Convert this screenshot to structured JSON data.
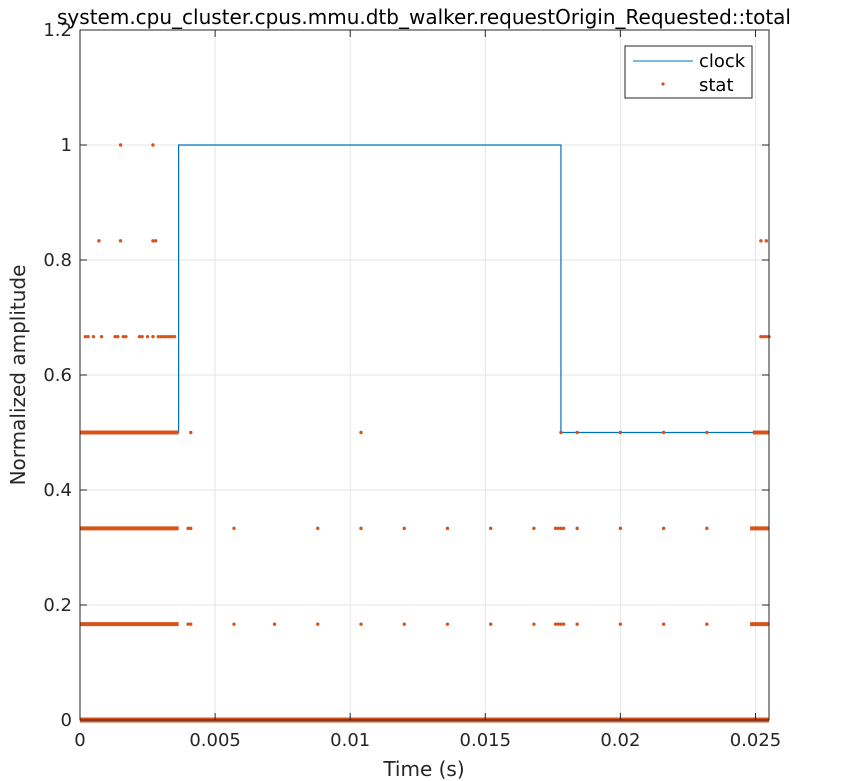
{
  "chart_data": {
    "type": "line",
    "title": "system.cpu_cluster.cpus.mmu.dtb_walker.requestOrigin_Requested::total",
    "xlabel": "Time (s)",
    "ylabel": "Normalized amplitude",
    "xlim": [
      0,
      0.0255
    ],
    "ylim": [
      0,
      1.2
    ],
    "xticks": [
      0,
      0.005,
      0.01,
      0.015,
      0.02,
      0.025
    ],
    "xtick_labels": [
      "0",
      "0.005",
      "0.01",
      "0.015",
      "0.02",
      "0.025"
    ],
    "yticks": [
      0,
      0.2,
      0.4,
      0.6,
      0.8,
      1,
      1.2
    ],
    "ytick_labels": [
      "0",
      "0.2",
      "0.4",
      "0.6",
      "0.8",
      "1",
      "1.2"
    ],
    "grid": true,
    "legend_position": "top-right",
    "colors": {
      "clock": "#0072BD",
      "stat": "#D95319",
      "grid": "#e6e6e6",
      "axis": "#262626"
    },
    "series": [
      {
        "name": "clock",
        "style": "step-line",
        "x": [
          0,
          0.00365,
          0.00365,
          0.0178,
          0.0178,
          0.0255
        ],
        "y": [
          0.5,
          0.5,
          1,
          1,
          0.5,
          0.5
        ]
      },
      {
        "name": "stat",
        "style": "markers",
        "dense_bands": [
          {
            "y": 0,
            "x_range": [
              0,
              0.0255
            ]
          },
          {
            "y": 0.1667,
            "x_range": [
              0,
              0.00365
            ]
          },
          {
            "y": 0.1667,
            "x_range": [
              0.0248,
              0.0255
            ]
          },
          {
            "y": 0.3333,
            "x_range": [
              0,
              0.00365
            ]
          },
          {
            "y": 0.3333,
            "x_range": [
              0.0248,
              0.0255
            ]
          },
          {
            "y": 0.5,
            "x_range": [
              0,
              0.00365
            ]
          },
          {
            "y": 0.5,
            "x_range": [
              0.0249,
              0.0255
            ]
          }
        ],
        "points": [
          {
            "x": 0.0015,
            "y": 1
          },
          {
            "x": 0.0027,
            "y": 1
          },
          {
            "x": 0.0007,
            "y": 0.8333
          },
          {
            "x": 0.0015,
            "y": 0.8333
          },
          {
            "x": 0.0027,
            "y": 0.8333
          },
          {
            "x": 0.0028,
            "y": 0.8333
          },
          {
            "x": 0.0252,
            "y": 0.8333
          },
          {
            "x": 0.0254,
            "y": 0.8333
          },
          {
            "x": 0.0002,
            "y": 0.6667
          },
          {
            "x": 0.0003,
            "y": 0.6667
          },
          {
            "x": 0.0005,
            "y": 0.6667
          },
          {
            "x": 0.0008,
            "y": 0.6667
          },
          {
            "x": 0.0013,
            "y": 0.6667
          },
          {
            "x": 0.0014,
            "y": 0.6667
          },
          {
            "x": 0.0016,
            "y": 0.6667
          },
          {
            "x": 0.0017,
            "y": 0.6667
          },
          {
            "x": 0.0022,
            "y": 0.6667
          },
          {
            "x": 0.0023,
            "y": 0.6667
          },
          {
            "x": 0.0025,
            "y": 0.6667
          },
          {
            "x": 0.0027,
            "y": 0.6667
          },
          {
            "x": 0.0029,
            "y": 0.6667
          },
          {
            "x": 0.003,
            "y": 0.6667
          },
          {
            "x": 0.0031,
            "y": 0.6667
          },
          {
            "x": 0.0032,
            "y": 0.6667
          },
          {
            "x": 0.0033,
            "y": 0.6667
          },
          {
            "x": 0.0034,
            "y": 0.6667
          },
          {
            "x": 0.0035,
            "y": 0.6667
          },
          {
            "x": 0.0252,
            "y": 0.6667
          },
          {
            "x": 0.0253,
            "y": 0.6667
          },
          {
            "x": 0.0254,
            "y": 0.6667
          },
          {
            "x": 0.0255,
            "y": 0.6667
          },
          {
            "x": 0.0041,
            "y": 0.5
          },
          {
            "x": 0.0104,
            "y": 0.5
          },
          {
            "x": 0.0178,
            "y": 0.5
          },
          {
            "x": 0.0184,
            "y": 0.5
          },
          {
            "x": 0.02,
            "y": 0.5
          },
          {
            "x": 0.0216,
            "y": 0.5
          },
          {
            "x": 0.0232,
            "y": 0.5
          },
          {
            "x": 0.004,
            "y": 0.3333
          },
          {
            "x": 0.0041,
            "y": 0.3333
          },
          {
            "x": 0.0057,
            "y": 0.3333
          },
          {
            "x": 0.0088,
            "y": 0.3333
          },
          {
            "x": 0.0104,
            "y": 0.3333
          },
          {
            "x": 0.012,
            "y": 0.3333
          },
          {
            "x": 0.0136,
            "y": 0.3333
          },
          {
            "x": 0.0152,
            "y": 0.3333
          },
          {
            "x": 0.0168,
            "y": 0.3333
          },
          {
            "x": 0.0176,
            "y": 0.3333
          },
          {
            "x": 0.0177,
            "y": 0.3333
          },
          {
            "x": 0.0178,
            "y": 0.3333
          },
          {
            "x": 0.0179,
            "y": 0.3333
          },
          {
            "x": 0.0184,
            "y": 0.3333
          },
          {
            "x": 0.02,
            "y": 0.3333
          },
          {
            "x": 0.0216,
            "y": 0.3333
          },
          {
            "x": 0.0232,
            "y": 0.3333
          },
          {
            "x": 0.004,
            "y": 0.1667
          },
          {
            "x": 0.0041,
            "y": 0.1667
          },
          {
            "x": 0.0057,
            "y": 0.1667
          },
          {
            "x": 0.0072,
            "y": 0.1667
          },
          {
            "x": 0.0088,
            "y": 0.1667
          },
          {
            "x": 0.0104,
            "y": 0.1667
          },
          {
            "x": 0.012,
            "y": 0.1667
          },
          {
            "x": 0.0136,
            "y": 0.1667
          },
          {
            "x": 0.0152,
            "y": 0.1667
          },
          {
            "x": 0.0168,
            "y": 0.1667
          },
          {
            "x": 0.0176,
            "y": 0.1667
          },
          {
            "x": 0.0177,
            "y": 0.1667
          },
          {
            "x": 0.0178,
            "y": 0.1667
          },
          {
            "x": 0.0179,
            "y": 0.1667
          },
          {
            "x": 0.0184,
            "y": 0.1667
          },
          {
            "x": 0.02,
            "y": 0.1667
          },
          {
            "x": 0.0216,
            "y": 0.1667
          },
          {
            "x": 0.0232,
            "y": 0.1667
          }
        ]
      }
    ]
  }
}
